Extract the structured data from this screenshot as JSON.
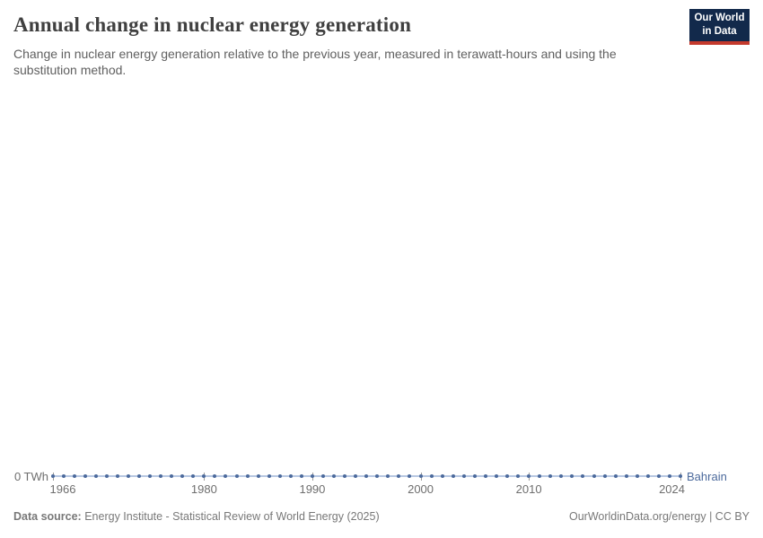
{
  "header": {
    "title": "Annual change in nuclear energy generation",
    "subtitle": "Change in nuclear energy generation relative to the previous year, measured in terawatt-hours and using the substitution method.",
    "logo": {
      "line1": "Our World",
      "line2": "in Data",
      "bg_color": "#12294B",
      "accent_color": "#C43A2D"
    }
  },
  "chart_data": {
    "type": "line",
    "title": "Annual change in nuclear energy generation",
    "subtitle": "Change in nuclear energy generation relative to the previous year, measured in terawatt-hours and using the substitution method.",
    "y_axis_label": "0 TWh",
    "ylabel": "terawatt-hours",
    "xlim": [
      1966,
      2024
    ],
    "x_ticks": [
      1966,
      1980,
      1990,
      2000,
      2010,
      2024
    ],
    "grid": false,
    "legend_position": "end-of-line",
    "marker_color": "#4C6A9C",
    "line_color": "#B7C8E2",
    "tick_color": "#9b9b9b",
    "series": [
      {
        "name": "Bahrain",
        "color": "#4C6A9C",
        "x": [
          1966,
          1967,
          1968,
          1969,
          1970,
          1971,
          1972,
          1973,
          1974,
          1975,
          1976,
          1977,
          1978,
          1979,
          1980,
          1981,
          1982,
          1983,
          1984,
          1985,
          1986,
          1987,
          1988,
          1989,
          1990,
          1991,
          1992,
          1993,
          1994,
          1995,
          1996,
          1997,
          1998,
          1999,
          2000,
          2001,
          2002,
          2003,
          2004,
          2005,
          2006,
          2007,
          2008,
          2009,
          2010,
          2011,
          2012,
          2013,
          2014,
          2015,
          2016,
          2017,
          2018,
          2019,
          2020,
          2021,
          2022,
          2023,
          2024
        ],
        "values": [
          0,
          0,
          0,
          0,
          0,
          0,
          0,
          0,
          0,
          0,
          0,
          0,
          0,
          0,
          0,
          0,
          0,
          0,
          0,
          0,
          0,
          0,
          0,
          0,
          0,
          0,
          0,
          0,
          0,
          0,
          0,
          0,
          0,
          0,
          0,
          0,
          0,
          0,
          0,
          0,
          0,
          0,
          0,
          0,
          0,
          0,
          0,
          0,
          0,
          0,
          0,
          0,
          0,
          0,
          0,
          0,
          0,
          0,
          0
        ]
      }
    ]
  },
  "footer": {
    "data_source_label": "Data source:",
    "data_source_value": "Energy Institute - Statistical Review of World Energy (2025)",
    "credit": "OurWorldinData.org/energy | CC BY"
  }
}
